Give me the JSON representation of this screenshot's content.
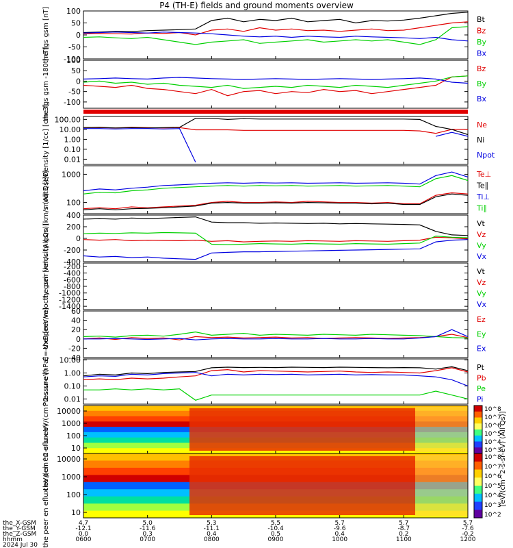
{
  "title": "P4 (TH-E) fields and ground moments overview",
  "colors": {
    "black": "#000000",
    "red": "#e00000",
    "green": "#00d000",
    "blue": "#0000e0"
  },
  "chart_data": [
    {
      "type": "line",
      "ylabel": "the fgs gsm [nT]",
      "ylim": [
        -100,
        100
      ],
      "ticks": [
        "100",
        "50",
        "0",
        "-50",
        "-100"
      ],
      "series": [
        {
          "name": "Bt",
          "color": "black",
          "values": [
            10,
            12,
            15,
            14,
            18,
            20,
            22,
            25,
            60,
            70,
            55,
            65,
            60,
            70,
            55,
            60,
            65,
            50,
            60,
            58,
            62,
            70,
            80,
            90,
            95
          ]
        },
        {
          "name": "Bz",
          "color": "red",
          "values": [
            5,
            6,
            5,
            4,
            8,
            6,
            10,
            0,
            20,
            25,
            15,
            30,
            20,
            25,
            18,
            20,
            15,
            20,
            25,
            18,
            20,
            30,
            40,
            50,
            55
          ]
        },
        {
          "name": "By",
          "color": "green",
          "values": [
            -10,
            -8,
            -12,
            -15,
            -10,
            -20,
            -30,
            -40,
            -30,
            -25,
            -20,
            -35,
            -30,
            -25,
            -20,
            -30,
            -25,
            -20,
            -25,
            -20,
            -30,
            -40,
            -20,
            30,
            35
          ]
        },
        {
          "name": "Bx",
          "color": "blue",
          "values": [
            8,
            10,
            12,
            10,
            8,
            12,
            10,
            8,
            5,
            0,
            -5,
            -8,
            -5,
            -10,
            -5,
            -8,
            -10,
            -5,
            -8,
            -10,
            -12,
            -15,
            -10,
            -20,
            -25
          ]
        }
      ]
    },
    {
      "type": "line",
      "ylabel": "the fgs gsm -180 [nT]",
      "ylim": [
        -130,
        100
      ],
      "ticks": [
        "100",
        "50",
        "0",
        "-50",
        "-100"
      ],
      "series": [
        {
          "name": "Bz",
          "color": "red",
          "values": [
            -20,
            -25,
            -30,
            -20,
            -35,
            -40,
            -50,
            -60,
            -40,
            -70,
            -50,
            -45,
            -60,
            -50,
            -55,
            -40,
            -50,
            -45,
            -60,
            -50,
            -40,
            -30,
            -20,
            20,
            25
          ]
        },
        {
          "name": "By",
          "color": "green",
          "values": [
            -5,
            0,
            -10,
            -5,
            -15,
            -10,
            -20,
            -25,
            -30,
            -20,
            -35,
            -30,
            -25,
            -30,
            -20,
            -25,
            -30,
            -20,
            -25,
            -30,
            -20,
            -10,
            0,
            20,
            25
          ]
        },
        {
          "name": "Bx",
          "color": "blue",
          "values": [
            10,
            12,
            15,
            12,
            10,
            15,
            18,
            15,
            12,
            10,
            8,
            10,
            12,
            10,
            8,
            10,
            12,
            10,
            8,
            10,
            12,
            15,
            10,
            -5,
            -10
          ]
        }
      ]
    },
    {
      "type": "line",
      "log": true,
      "ylabel": "Density [1/cc] [cm-3]",
      "ylim": [
        0.003,
        200
      ],
      "ticks": [
        "100.00",
        "10.00",
        "1.00",
        "0.10",
        "0.01"
      ],
      "series": [
        {
          "name": "Ne",
          "color": "red",
          "values": [
            15,
            15,
            14,
            16,
            15,
            14,
            15,
            9,
            9,
            9,
            8,
            8,
            8,
            8,
            8,
            8,
            8,
            8,
            8,
            8,
            8,
            7,
            4,
            10,
            10
          ]
        },
        {
          "name": "Ni",
          "color": "black",
          "values": [
            15,
            16,
            14,
            15,
            14,
            15,
            16,
            130,
            130,
            100,
            120,
            110,
            110,
            110,
            110,
            110,
            110,
            110,
            110,
            110,
            110,
            100,
            20,
            10,
            3
          ]
        },
        {
          "name": "Npot",
          "color": "blue",
          "values": [
            12,
            12,
            11,
            12,
            12,
            11,
            12,
            0.005,
            null,
            null,
            null,
            null,
            null,
            null,
            null,
            null,
            null,
            null,
            null,
            null,
            null,
            null,
            2,
            5,
            2
          ]
        }
      ]
    },
    {
      "type": "line",
      "log": true,
      "ylabel": "moqt3 [eV]",
      "ylim": [
        40,
        2000
      ],
      "ticks": [
        "1000",
        "100"
      ],
      "series": [
        {
          "name": "Te⊥",
          "color": "red",
          "values": [
            60,
            65,
            60,
            70,
            65,
            70,
            75,
            80,
            100,
            110,
            100,
            100,
            105,
            100,
            110,
            105,
            100,
            100,
            95,
            100,
            90,
            90,
            180,
            220,
            200
          ]
        },
        {
          "name": "Te∥",
          "color": "black",
          "values": [
            55,
            60,
            55,
            60,
            62,
            65,
            70,
            75,
            95,
            100,
            95,
            95,
            98,
            95,
            100,
            98,
            95,
            95,
            90,
            95,
            85,
            85,
            160,
            200,
            180
          ]
        },
        {
          "name": "Ti⊥",
          "color": "blue",
          "values": [
            260,
            300,
            280,
            320,
            350,
            400,
            420,
            450,
            480,
            500,
            480,
            500,
            490,
            500,
            480,
            490,
            500,
            480,
            490,
            500,
            480,
            450,
            900,
            1200,
            800
          ]
        },
        {
          "name": "Ti∥",
          "color": "green",
          "values": [
            200,
            230,
            220,
            260,
            280,
            320,
            340,
            360,
            380,
            400,
            380,
            400,
            390,
            400,
            380,
            390,
            400,
            380,
            390,
            400,
            380,
            360,
            700,
            900,
            600
          ]
        }
      ]
    },
    {
      "type": "line",
      "ylabel": "the peir velocity gsm [km/s (All Qs)]",
      "ylim": [
        -400,
        400
      ],
      "ticks": [
        "400",
        "200",
        "0",
        "-200",
        "-400"
      ],
      "series": [
        {
          "name": "Vt",
          "color": "black",
          "values": [
            330,
            340,
            330,
            350,
            340,
            350,
            360,
            370,
            280,
            270,
            270,
            260,
            265,
            260,
            255,
            260,
            250,
            255,
            250,
            245,
            240,
            230,
            120,
            60,
            50
          ]
        },
        {
          "name": "Vz",
          "color": "red",
          "values": [
            -20,
            -30,
            -20,
            -40,
            -30,
            -35,
            -40,
            -30,
            -50,
            -40,
            -60,
            -50,
            -45,
            -50,
            -40,
            -45,
            -50,
            -40,
            -45,
            -50,
            -40,
            -30,
            20,
            10,
            -10
          ]
        },
        {
          "name": "Vy",
          "color": "green",
          "values": [
            80,
            90,
            85,
            95,
            90,
            100,
            95,
            90,
            -100,
            -110,
            -100,
            -90,
            -95,
            -100,
            -90,
            -95,
            -100,
            -90,
            -95,
            -100,
            -90,
            -80,
            40,
            20,
            10
          ]
        },
        {
          "name": "Vx",
          "color": "blue",
          "values": [
            -300,
            -320,
            -310,
            -330,
            -320,
            -340,
            -350,
            -360,
            -250,
            -240,
            -230,
            -230,
            -225,
            -220,
            -215,
            -210,
            -205,
            -200,
            -195,
            -190,
            -185,
            -180,
            -60,
            -30,
            -20
          ]
        }
      ]
    },
    {
      "type": "line",
      "ylabel": "the peer velocity gsm [km/s (All Qs)]",
      "ylim": [
        -1500,
        -100
      ],
      "ticks": [
        "-200",
        "-400",
        "-600",
        "-800",
        "-1000",
        "-1200",
        "-1400"
      ],
      "series": [
        {
          "name": "Vt",
          "color": "black",
          "values": []
        },
        {
          "name": "Vz",
          "color": "red",
          "values": []
        },
        {
          "name": "Vy",
          "color": "green",
          "values": []
        },
        {
          "name": "Vx",
          "color": "blue",
          "values": []
        }
      ]
    },
    {
      "type": "line",
      "ylabel": "E=-VxB [mV/m]",
      "ylim": [
        -40,
        60
      ],
      "ticks": [
        "60",
        "40",
        "20",
        "0",
        "-20",
        "-40"
      ],
      "series": [
        {
          "name": "Ez",
          "color": "red",
          "values": [
            0,
            2,
            -1,
            3,
            1,
            2,
            -2,
            5,
            3,
            4,
            2,
            3,
            4,
            2,
            3,
            1,
            2,
            3,
            2,
            1,
            2,
            3,
            5,
            10,
            3
          ]
        },
        {
          "name": "Ey",
          "color": "green",
          "values": [
            5,
            6,
            4,
            7,
            8,
            6,
            10,
            15,
            8,
            10,
            12,
            8,
            10,
            9,
            8,
            10,
            9,
            8,
            10,
            9,
            8,
            7,
            5,
            3,
            2
          ]
        },
        {
          "name": "Ex",
          "color": "blue",
          "values": [
            0,
            0,
            1,
            0,
            -1,
            0,
            1,
            -2,
            0,
            1,
            0,
            0,
            1,
            0,
            0,
            1,
            0,
            0,
            1,
            0,
            0,
            2,
            5,
            20,
            5
          ]
        }
      ]
    },
    {
      "type": "line",
      "log": true,
      "ylabel": "Pressure [nPa]",
      "ylim": [
        0.004,
        12
      ],
      "ticks": [
        "10.00",
        "1.00",
        "0.10",
        "0.01"
      ],
      "series": [
        {
          "name": "Pt",
          "color": "black",
          "values": [
            0.6,
            0.8,
            0.7,
            1.0,
            0.9,
            1.1,
            1.2,
            1.3,
            2.5,
            2.8,
            2.6,
            2.7,
            2.6,
            2.8,
            2.7,
            2.6,
            2.8,
            2.7,
            2.6,
            2.5,
            2.6,
            2.5,
            2.0,
            3.0,
            1.5
          ]
        },
        {
          "name": "Pb",
          "color": "red",
          "values": [
            0.3,
            0.35,
            0.3,
            0.4,
            0.35,
            0.4,
            0.5,
            0.6,
            1.5,
            1.8,
            1.2,
            1.5,
            1.4,
            1.3,
            1.2,
            1.3,
            1.4,
            1.2,
            1.1,
            1.2,
            1.1,
            1.0,
            1.5,
            2.5,
            1.2
          ]
        },
        {
          "name": "Pe",
          "color": "green",
          "values": [
            0.05,
            0.05,
            0.06,
            0.05,
            0.06,
            0.05,
            0.06,
            0.008,
            0.02,
            0.02,
            0.02,
            0.02,
            0.02,
            0.02,
            0.02,
            0.02,
            0.02,
            0.02,
            0.02,
            0.02,
            0.02,
            0.02,
            0.04,
            0.02,
            0.01
          ]
        },
        {
          "name": "Pi",
          "color": "blue",
          "values": [
            0.5,
            0.6,
            0.55,
            0.8,
            0.7,
            0.9,
            1.0,
            1.1,
            0.6,
            0.8,
            0.7,
            0.8,
            0.75,
            0.8,
            0.7,
            0.75,
            0.8,
            0.7,
            0.75,
            0.7,
            0.7,
            0.6,
            0.5,
            0.3,
            0.1
          ]
        }
      ]
    },
    {
      "type": "heatmap",
      "ylabel": "the peir en eflux eV/(cm^2-s-sr-eV)",
      "ticks": [
        "10000",
        "1000",
        "100",
        "10"
      ],
      "colorbar_ticks": [
        "10^8",
        "10^7",
        "10^6",
        "10^5",
        "10^4",
        "10^3"
      ]
    },
    {
      "type": "heatmap",
      "ylabel": "the peer en eflux eV/(cm^2-s-sr-eV)",
      "ticks": [
        "10000",
        "1000",
        "100",
        "10"
      ],
      "colorbar_ticks": [
        "10^8",
        "10^7",
        "10^6",
        "10^5",
        "10^4",
        "10^3",
        "10^2"
      ]
    }
  ],
  "colorbar_label": "[eV/(cm^2-s-sr-eV) (All Qs)]",
  "x_axis": {
    "row_labels": [
      "the_X-GSM",
      "the_Y-GSM",
      "the_Z-GSM",
      "hhmm",
      "2024 Jul 30"
    ],
    "ticks": [
      {
        "x": "4.7",
        "y": "-12.1",
        "z": "0.0",
        "t": "0600"
      },
      {
        "x": "5.0",
        "y": "-11.6",
        "z": "0.3",
        "t": "0700"
      },
      {
        "x": "5.3",
        "y": "-11.1",
        "z": "0.4",
        "t": "0800"
      },
      {
        "x": "5.5",
        "y": "-10.4",
        "z": "0.5",
        "t": "0900"
      },
      {
        "x": "5.7",
        "y": "-9.6",
        "z": "0.4",
        "t": "1000"
      },
      {
        "x": "5.7",
        "y": "-8.7",
        "z": "0.2",
        "t": "1100"
      },
      {
        "x": "5.7",
        "y": "-7.6",
        "z": "-0.2",
        "t": "1200"
      }
    ]
  }
}
